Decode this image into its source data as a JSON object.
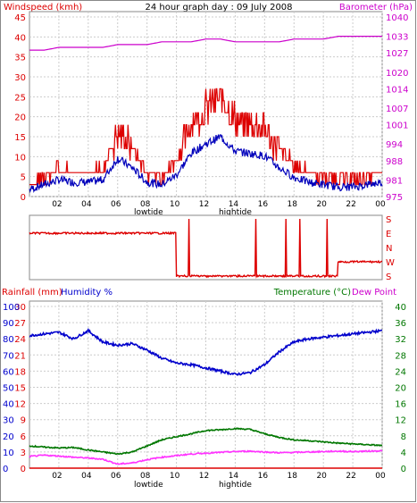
{
  "title": "24 hour graph day : 09 July 2008",
  "colors": {
    "wind": "#dd0000",
    "baro": "#cc00cc",
    "windavg": "#0000bb",
    "humidity": "#0000cc",
    "temp": "#007700",
    "dew": "#ff33ff",
    "rain": "#dd0000",
    "grid": "#cccccc",
    "frame": "#888888",
    "text": "#000000"
  },
  "top": {
    "left_label": "Windspeed (kmh)",
    "right_label": "Barometer (hPa)",
    "left_ticks": [
      "0",
      "5",
      "10",
      "15",
      "20",
      "25",
      "30",
      "35",
      "40",
      "45"
    ],
    "right_ticks": [
      "975",
      "981",
      "988",
      "994",
      "1001",
      "1007",
      "1014",
      "1020",
      "1027",
      "1033",
      "1040"
    ]
  },
  "dir": {
    "ticks": [
      "S",
      "E",
      "N",
      "W",
      "S"
    ]
  },
  "bottom": {
    "rain_label": "Rainfall (mm)",
    "hum_label": "Humidity %",
    "temp_label": "Temperature (°C)",
    "dew_label": "Dew Point",
    "rain_ticks": [
      "0",
      "3",
      "6",
      "9",
      "12",
      "15",
      "18",
      "21",
      "24",
      "27",
      "30"
    ],
    "hum_ticks": [
      "0",
      "10",
      "20",
      "30",
      "40",
      "50",
      "60",
      "70",
      "80",
      "90",
      "100"
    ],
    "temp_ticks": [
      "0",
      "4",
      "8",
      "12",
      "16",
      "20",
      "24",
      "28",
      "32",
      "36",
      "40"
    ]
  },
  "x_ticks": [
    "02",
    "04",
    "06",
    "08",
    "10",
    "12",
    "14",
    "16",
    "18",
    "20",
    "22",
    "00"
  ],
  "tide": {
    "low_label": "lowtide",
    "high_label": "hightide"
  },
  "chart_data": [
    {
      "type": "line",
      "title": "24 hour graph day : 09 July 2008",
      "x": [
        0,
        1,
        2,
        3,
        4,
        5,
        6,
        7,
        8,
        9,
        10,
        11,
        12,
        13,
        14,
        15,
        16,
        17,
        18,
        19,
        20,
        21,
        22,
        23,
        24
      ],
      "xlabel": "",
      "series": [
        {
          "name": "Windspeed (kmh)",
          "axis": "left",
          "values": [
            3,
            5,
            7,
            6,
            6,
            7,
            16,
            12,
            6,
            5,
            9,
            18,
            22,
            25,
            19,
            18,
            17,
            12,
            8,
            6,
            5,
            4,
            4,
            5,
            6
          ]
        },
        {
          "name": "Barometer (hPa)",
          "axis": "right",
          "values": [
            1028,
            1028,
            1029,
            1029,
            1029,
            1029,
            1030,
            1030,
            1030,
            1031,
            1031,
            1031,
            1032,
            1032,
            1031,
            1031,
            1031,
            1031,
            1032,
            1032,
            1032,
            1033,
            1033,
            1033,
            1033
          ]
        }
      ],
      "ylim_left": [
        0,
        45
      ],
      "ylim_right": [
        975,
        1040
      ]
    },
    {
      "type": "line",
      "x": [
        0,
        1,
        2,
        3,
        4,
        5,
        6,
        7,
        8,
        9,
        10,
        11,
        12,
        13,
        14,
        15,
        16,
        17,
        18,
        19,
        20,
        21,
        22,
        23,
        24
      ],
      "ylabel": "S E N W S",
      "series": [
        {
          "name": "Wind direction",
          "values": [
            "E",
            "E",
            "E",
            "E",
            "E",
            "E",
            "E",
            "E",
            "E",
            "E",
            "S",
            "S",
            "S",
            "S",
            "S",
            "S",
            "S",
            "S",
            "S",
            "S",
            "S",
            "W",
            "W",
            "W",
            "W"
          ]
        }
      ]
    },
    {
      "type": "line",
      "x": [
        0,
        1,
        2,
        3,
        4,
        5,
        6,
        7,
        8,
        9,
        10,
        11,
        12,
        13,
        14,
        15,
        16,
        17,
        18,
        19,
        20,
        21,
        22,
        23,
        24
      ],
      "series": [
        {
          "name": "Humidity %",
          "axis": "hum",
          "values": [
            82,
            83,
            84,
            80,
            85,
            78,
            76,
            77,
            73,
            68,
            65,
            64,
            62,
            60,
            58,
            59,
            64,
            72,
            78,
            80,
            81,
            82,
            83,
            84,
            85
          ]
        },
        {
          "name": "Temperature (°C)",
          "axis": "temp",
          "values": [
            5.5,
            5.2,
            5.0,
            5.1,
            4.5,
            4.0,
            3.5,
            4.0,
            5.5,
            7.0,
            7.8,
            8.5,
            9.3,
            9.5,
            9.8,
            9.6,
            8.5,
            7.6,
            7.0,
            6.8,
            6.5,
            6.2,
            6.0,
            5.8,
            5.6
          ]
        },
        {
          "name": "Dew Point",
          "axis": "temp",
          "values": [
            2.9,
            3.2,
            3.0,
            2.7,
            2.5,
            2.2,
            1.0,
            1.3,
            2.1,
            2.7,
            3.1,
            3.5,
            3.7,
            3.9,
            4.1,
            4.2,
            4.0,
            3.8,
            3.9,
            4.0,
            4.1,
            4.2,
            4.1,
            4.2,
            4.3
          ]
        },
        {
          "name": "Rainfall (mm)",
          "axis": "rain",
          "values": [
            0,
            0,
            0,
            0,
            0,
            0,
            0,
            0,
            0,
            0,
            0,
            0,
            0,
            0,
            0,
            0,
            0,
            0,
            0,
            0,
            0,
            0,
            0,
            0,
            0
          ]
        }
      ],
      "ylim_rain": [
        0,
        30
      ],
      "ylim_hum": [
        0,
        100
      ],
      "ylim_temp": [
        0,
        40
      ]
    }
  ]
}
